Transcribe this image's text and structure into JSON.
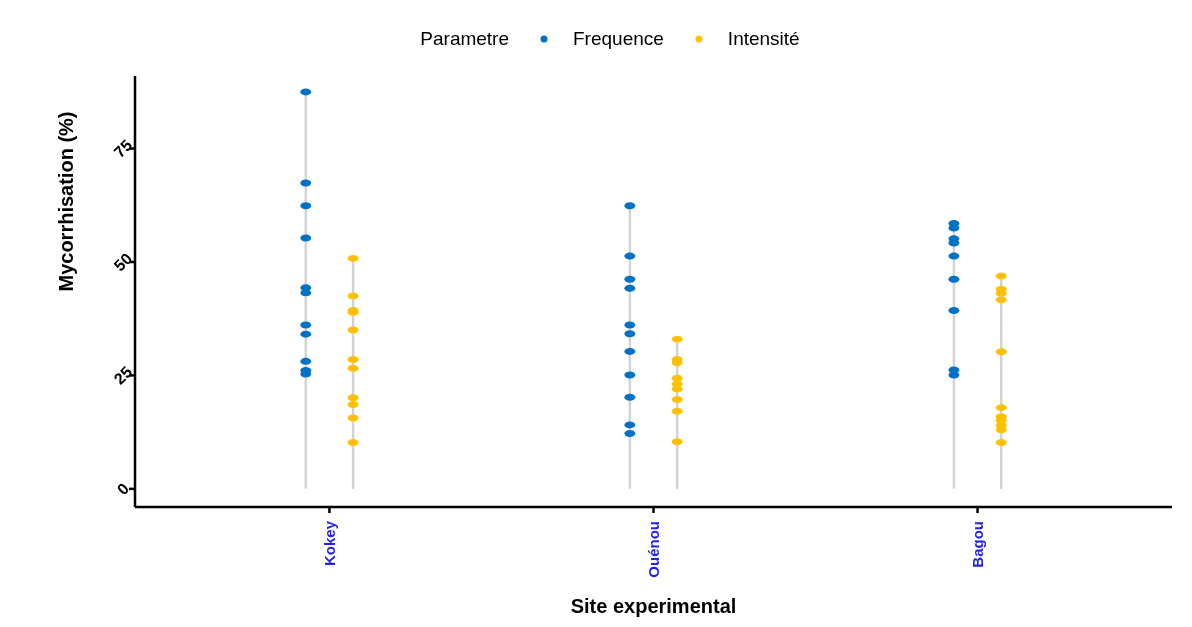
{
  "chart_data": {
    "type": "scatter",
    "xlabel": "Site experimental",
    "ylabel": "Mycorrhisation (%)",
    "legend_title": "Parametre",
    "legend": "top",
    "grid": false,
    "marker": "circle",
    "categories": [
      "Kokey",
      "Ouénou",
      "Bagou"
    ],
    "ylim": [
      -4,
      91
    ],
    "yticks": [
      0,
      25,
      50,
      75
    ],
    "series": [
      {
        "name": "Frequence",
        "color": "#0072c6",
        "x": [
          "Kokey",
          "Kokey",
          "Kokey",
          "Kokey",
          "Kokey",
          "Kokey",
          "Kokey",
          "Kokey",
          "Kokey",
          "Kokey",
          "Kokey",
          "Ouénou",
          "Ouénou",
          "Ouénou",
          "Ouénou",
          "Ouénou",
          "Ouénou",
          "Ouénou",
          "Ouénou",
          "Ouénou",
          "Ouénou",
          "Ouénou",
          "Bagou",
          "Bagou",
          "Bagou",
          "Bagou",
          "Bagou",
          "Bagou",
          "Bagou",
          "Bagou",
          "Bagou"
        ],
        "values": [
          87.5,
          67.4,
          62.4,
          55.3,
          44.3,
          43.2,
          36.1,
          34.1,
          28.1,
          26.1,
          25.3,
          62.4,
          51.3,
          46.2,
          44.2,
          36.1,
          34.2,
          30.3,
          25.1,
          20.2,
          14.1,
          12.2,
          58.5,
          57.5,
          55.1,
          54.2,
          51.3,
          46.2,
          39.3,
          26.2,
          25.1
        ]
      },
      {
        "name": "Intensité",
        "color": "#ffc000",
        "x": [
          "Kokey",
          "Kokey",
          "Kokey",
          "Kokey",
          "Kokey",
          "Kokey",
          "Kokey",
          "Kokey",
          "Kokey",
          "Kokey",
          "Kokey",
          "Ouénou",
          "Ouénou",
          "Ouénou",
          "Ouénou",
          "Ouénou",
          "Ouénou",
          "Ouénou",
          "Ouénou",
          "Ouénou",
          "Bagou",
          "Bagou",
          "Bagou",
          "Bagou",
          "Bagou",
          "Bagou",
          "Bagou",
          "Bagou",
          "Bagou",
          "Bagou",
          "Bagou"
        ],
        "values": [
          50.8,
          42.5,
          39.3,
          38.9,
          35.0,
          28.5,
          26.6,
          20.1,
          18.6,
          15.6,
          10.2,
          33.0,
          28.5,
          27.8,
          24.4,
          23.1,
          22.0,
          19.7,
          17.1,
          10.4,
          46.9,
          44.0,
          43.1,
          41.7,
          30.2,
          17.9,
          15.9,
          15.1,
          14.0,
          13.0,
          10.2
        ]
      }
    ]
  }
}
